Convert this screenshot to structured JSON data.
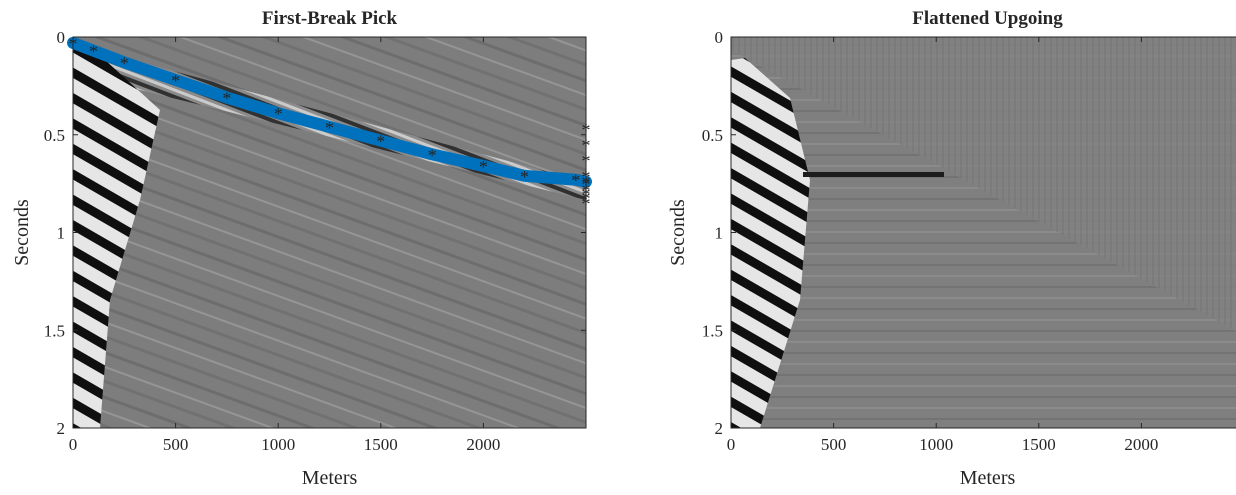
{
  "chart_data": [
    {
      "type": "heatmap",
      "title": "First-Break Pick",
      "xlabel": "Meters",
      "ylabel": "Seconds",
      "xlim": [
        0,
        2500
      ],
      "ylim": [
        2,
        0
      ],
      "y_reversed": true,
      "xticks": [
        0,
        500,
        1000,
        1500,
        2000
      ],
      "xtick_labels": [
        "0",
        "500",
        "1000",
        "1500",
        "2000"
      ],
      "yticks": [
        0,
        0.5,
        1,
        1.5,
        2
      ],
      "ytick_labels": [
        "0",
        "0.5",
        "1",
        "1.5",
        "2"
      ],
      "colormap": "gray",
      "grid": false,
      "series": [
        {
          "marker": "*",
          "color": "#0072BD",
          "x": [
            0,
            100,
            250,
            500,
            750,
            1000,
            1250,
            1500,
            1750,
            2000,
            2200,
            2450,
            2500
          ],
          "y": [
            0.03,
            0.07,
            0.13,
            0.22,
            0.31,
            0.39,
            0.46,
            0.53,
            0.6,
            0.66,
            0.71,
            0.73,
            0.74
          ]
        },
        {
          "marker": "*",
          "color": "#0072BD",
          "x": [
            2500,
            2500,
            2500,
            2500,
            2500,
            2500,
            2500,
            2500,
            2500
          ],
          "y": [
            0.47,
            0.55,
            0.63,
            0.71,
            0.75,
            0.78,
            0.8,
            0.82,
            0.85
          ]
        }
      ]
    },
    {
      "type": "heatmap",
      "title": "Flattened Upgoing",
      "xlabel": "Meters",
      "ylabel": "Seconds",
      "xlim": [
        0,
        2500
      ],
      "ylim": [
        2,
        0
      ],
      "y_reversed": true,
      "xticks": [
        0,
        500,
        1000,
        1500,
        2000
      ],
      "xtick_labels": [
        "0",
        "500",
        "1000",
        "1500",
        "2000"
      ],
      "yticks": [
        0,
        0.5,
        1,
        1.5,
        2
      ],
      "ytick_labels": [
        "0",
        "0.5",
        "1",
        "1.5",
        "2"
      ],
      "colormap": "gray",
      "grid": false
    }
  ]
}
